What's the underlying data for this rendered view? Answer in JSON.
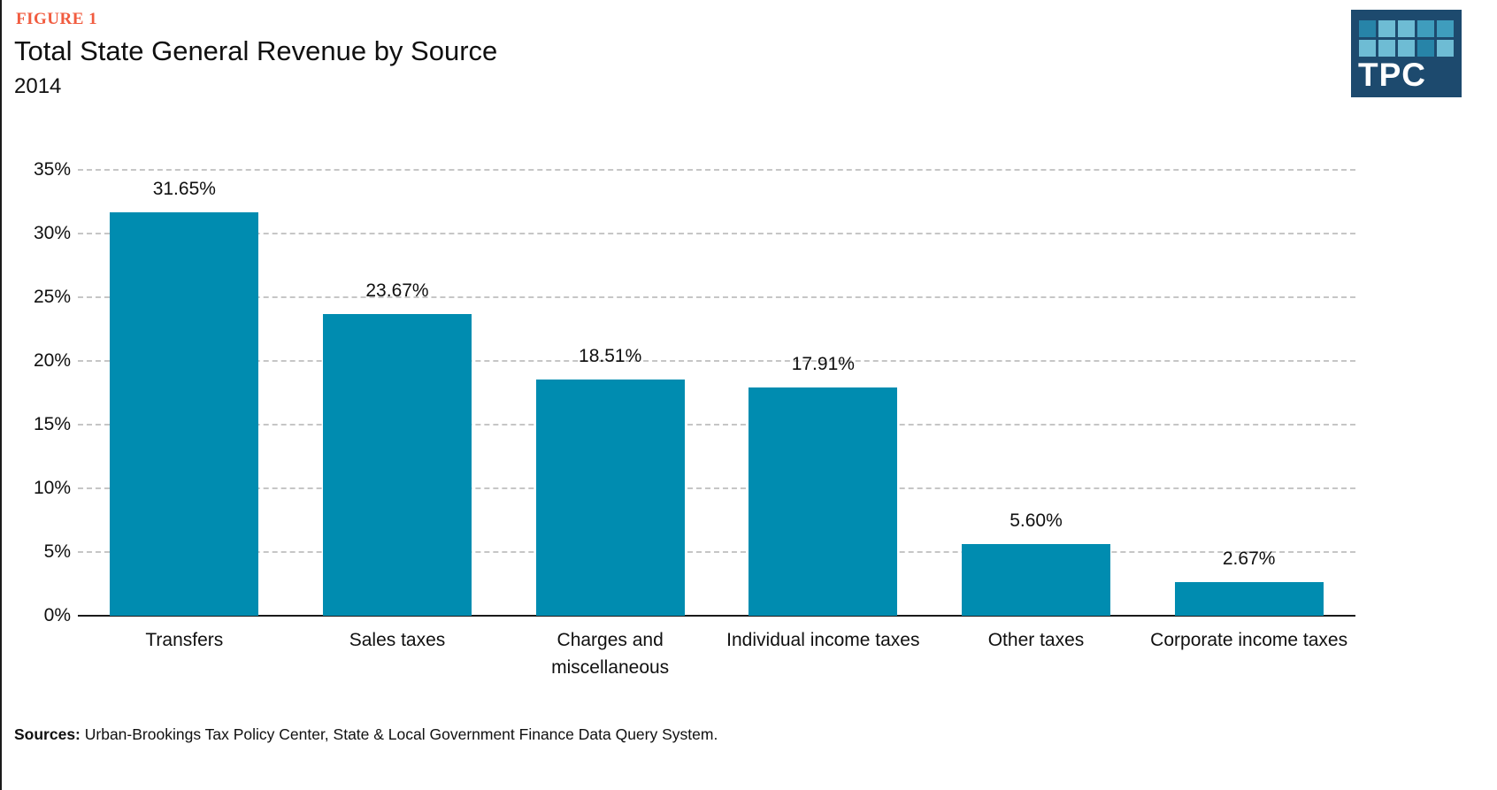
{
  "header": {
    "figure_label": "FIGURE 1",
    "title": "Total State General Revenue by Source",
    "subtitle": "2014"
  },
  "logo": {
    "text": "TPC",
    "background": "#1D4A6E",
    "square_shades": {
      "dark": "#2784A8",
      "medium": "#3F9DBD",
      "light": "#6EBCD4"
    },
    "square_grid": [
      [
        "dark",
        "light",
        "light",
        "medium",
        "medium"
      ],
      [
        "light",
        "light",
        "light",
        "dark",
        "light"
      ]
    ]
  },
  "chart_data": {
    "type": "bar",
    "title": "Total State General Revenue by Source",
    "subtitle": "2014",
    "categories": [
      "Transfers",
      "Sales taxes",
      "Charges and miscellaneous",
      "Individual income taxes",
      "Other taxes",
      "Corporate income taxes"
    ],
    "category_lines": [
      [
        "Transfers"
      ],
      [
        "Sales taxes"
      ],
      [
        "Charges and",
        "miscellaneous"
      ],
      [
        "Individual income taxes"
      ],
      [
        "Other taxes"
      ],
      [
        "Corporate income taxes"
      ]
    ],
    "values": [
      31.65,
      23.67,
      18.51,
      17.91,
      5.6,
      2.67
    ],
    "value_labels": [
      "31.65%",
      "23.67%",
      "18.51%",
      "17.91%",
      "5.60%",
      "2.67%"
    ],
    "xlabel": "",
    "ylabel": "",
    "ylim": [
      0,
      35
    ],
    "ytick_step": 5,
    "ytick_labels": [
      "0%",
      "5%",
      "10%",
      "15%",
      "20%",
      "25%",
      "30%",
      "35%"
    ],
    "grid": "horizontal-dashed",
    "legend": "none",
    "bar_color": "#008CB0"
  },
  "footer": {
    "sources_label": "Sources:",
    "sources_text": " Urban-Brookings Tax Policy Center, State & Local Government Finance Data Query System."
  }
}
